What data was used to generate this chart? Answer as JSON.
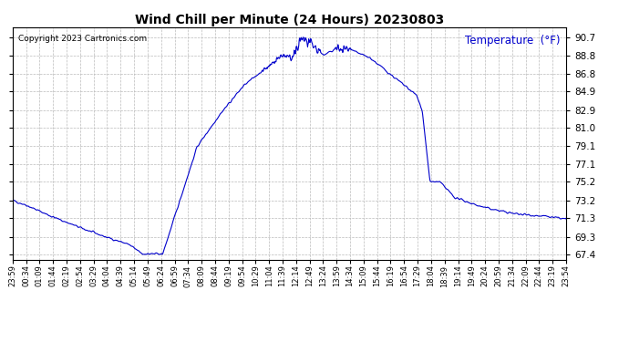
{
  "title": "Wind Chill per Minute (24 Hours) 20230803",
  "copyright": "Copyright 2023 Cartronics.com",
  "legend_label": "Temperature  (°F)",
  "line_color": "#0000cc",
  "background_color": "#ffffff",
  "grid_color": "#bbbbbb",
  "yticks": [
    67.4,
    69.3,
    71.3,
    73.2,
    75.2,
    77.1,
    79.1,
    81.0,
    82.9,
    84.9,
    86.8,
    88.8,
    90.7
  ],
  "ylim": [
    66.8,
    91.8
  ],
  "x_tick_labels": [
    "23:59",
    "00:34",
    "01:09",
    "01:44",
    "02:19",
    "02:54",
    "03:29",
    "04:04",
    "04:39",
    "05:14",
    "05:49",
    "06:24",
    "06:59",
    "07:34",
    "08:09",
    "08:44",
    "09:19",
    "09:54",
    "10:29",
    "11:04",
    "11:39",
    "12:14",
    "12:49",
    "13:24",
    "13:59",
    "14:34",
    "15:09",
    "15:44",
    "16:19",
    "16:54",
    "17:29",
    "18:04",
    "18:39",
    "19:14",
    "19:49",
    "20:24",
    "20:59",
    "21:34",
    "22:09",
    "22:44",
    "23:19",
    "23:54"
  ],
  "figsize": [
    6.9,
    3.75
  ],
  "dpi": 100
}
